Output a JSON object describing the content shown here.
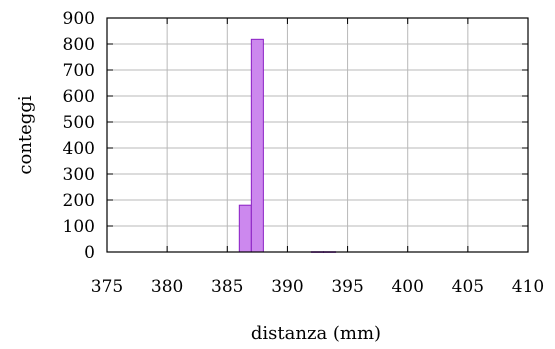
{
  "chart_data": {
    "type": "bar",
    "title": "",
    "xlabel": "distanza (mm)",
    "ylabel": "conteggi",
    "xlim": [
      375,
      410
    ],
    "ylim": [
      0,
      900
    ],
    "xticks": [
      375,
      380,
      385,
      390,
      395,
      400,
      405,
      410
    ],
    "yticks": [
      0,
      100,
      200,
      300,
      400,
      500,
      600,
      700,
      800,
      900
    ],
    "grid": true,
    "bin_width": 1,
    "bars": [
      {
        "x": 386.5,
        "value": 180
      },
      {
        "x": 387.5,
        "value": 818
      },
      {
        "x": 392.5,
        "value": 1
      },
      {
        "x": 393.5,
        "value": 1
      }
    ],
    "colors": {
      "bar_fill": "#cc88ee",
      "bar_stroke": "#8a1fc4"
    }
  }
}
